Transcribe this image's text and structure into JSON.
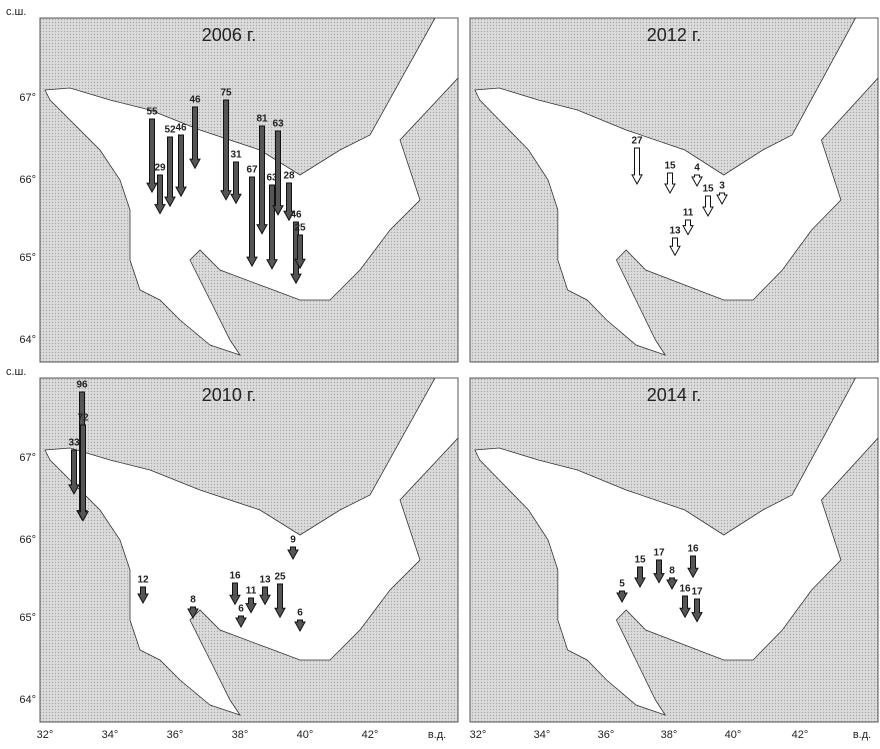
{
  "lat_label": "с.ш.",
  "lon_label": "в.д.",
  "lat_ticks": [
    "67°",
    "66°",
    "65°",
    "64°"
  ],
  "lon_ticks": [
    "32°",
    "34°",
    "36°",
    "38°",
    "40°",
    "42°"
  ],
  "panels": [
    {
      "title": "2006 г.",
      "arrow_style": "filled",
      "arrows": [
        55,
        29,
        52,
        46,
        46,
        75,
        31,
        67,
        81,
        63,
        63,
        28,
        46,
        25
      ]
    },
    {
      "title": "2012 г.",
      "arrow_style": "open",
      "arrows": [
        27,
        15,
        4,
        15,
        3,
        11,
        13
      ]
    },
    {
      "title": "2010 г.",
      "arrow_style": "filled",
      "arrows": [
        96,
        72,
        33,
        9,
        12,
        8,
        16,
        6,
        11,
        13,
        25,
        6
      ]
    },
    {
      "title": "2014 г.",
      "arrow_style": "filled",
      "arrows": [
        5,
        15,
        17,
        8,
        16,
        16,
        17
      ]
    }
  ]
}
